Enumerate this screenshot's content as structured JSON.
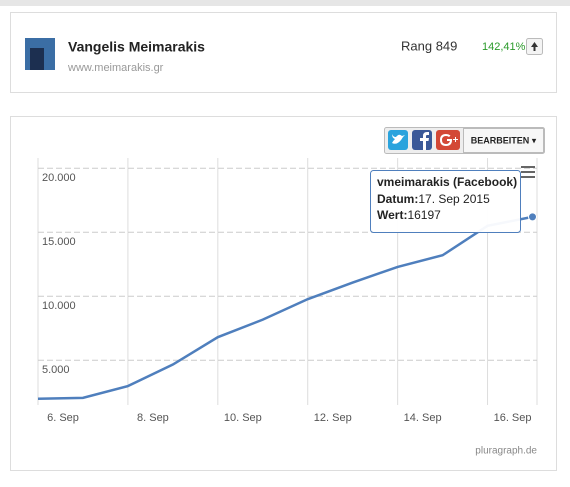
{
  "header": {
    "name": "Vangelis Meimarakis",
    "url": "www.meimarakis.gr",
    "rank": "Rang 849",
    "change": "142,41%"
  },
  "toolbar": {
    "edit": "BEARBEITEN ▾"
  },
  "chart_data": {
    "type": "line",
    "x": [
      6,
      7,
      8,
      9,
      10,
      11,
      12,
      13,
      14,
      15,
      16,
      17
    ],
    "series": [
      {
        "name": "vmeimarakis (Facebook)",
        "color": "#4f7fbd",
        "values": [
          1990,
          2060,
          2980,
          4660,
          6800,
          8170,
          9770,
          11070,
          12290,
          13200,
          15500,
          16197
        ]
      }
    ],
    "xlim": [
      6,
      17.1
    ],
    "xticks": [
      {
        "value": 6,
        "label": "6. Sep"
      },
      {
        "value": 8,
        "label": "8. Sep"
      },
      {
        "value": 10,
        "label": "10. Sep"
      },
      {
        "value": 12,
        "label": "12. Sep"
      },
      {
        "value": 14,
        "label": "14. Sep"
      },
      {
        "value": 16,
        "label": "16. Sep"
      }
    ],
    "ylim": [
      1500,
      20800
    ],
    "yticks": [
      {
        "value": 5000,
        "label": "5.000"
      },
      {
        "value": 10000,
        "label": "10.000"
      },
      {
        "value": 15000,
        "label": "15.000"
      },
      {
        "value": 20000,
        "label": "20.000"
      }
    ],
    "grid": true,
    "tooltip": {
      "title": "vmeimarakis (Facebook)",
      "date_label": "Datum:",
      "date": "17. Sep 2015",
      "value_label": "Wert:",
      "value": 16197
    }
  },
  "footer": {
    "source": "pluragraph.de"
  }
}
